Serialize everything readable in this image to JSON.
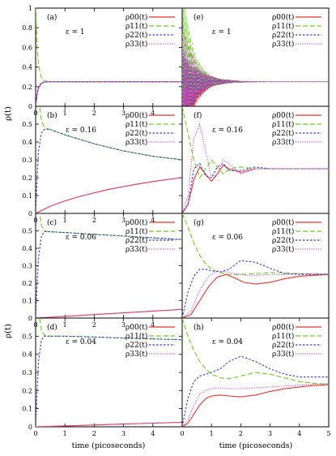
{
  "figure": {
    "ylabel": "ρ(t)",
    "xlabel": "time (picoseconds)"
  },
  "legend_labels": [
    "ρ00(t)",
    "ρ11(t)",
    "ρ22(t)",
    "ρ33(t)"
  ],
  "series_styles": [
    {
      "color": "#e8332f",
      "dash": ""
    },
    {
      "color": "#6bcd1c",
      "dash": "6,3"
    },
    {
      "color": "#3a3ad6",
      "dash": "2.5,2"
    },
    {
      "color": "#d14fd6",
      "dash": "1.2,1.6"
    }
  ],
  "chart_data": [
    {
      "type": "line",
      "panel_label": "(a)",
      "epsilon_label": "ε = 1",
      "xlim": [
        0,
        5
      ],
      "ylim": [
        0,
        1
      ],
      "x_ticks": [
        "0",
        "1",
        "2",
        "3",
        "4"
      ],
      "y_ticks": [
        "0",
        "0.2",
        "0.4",
        "0.6",
        "0.8",
        "1"
      ],
      "series": [
        {
          "name": "ρ00(t)",
          "x": [
            0,
            0.05,
            0.1,
            0.2,
            0.3,
            0.5,
            1,
            5
          ],
          "y": [
            0,
            0.12,
            0.19,
            0.235,
            0.248,
            0.25,
            0.25,
            0.25
          ]
        },
        {
          "name": "ρ11(t)",
          "x": [
            0,
            0.05,
            0.1,
            0.2,
            0.3,
            0.5,
            1,
            5
          ],
          "y": [
            1,
            0.6,
            0.42,
            0.29,
            0.26,
            0.25,
            0.25,
            0.25
          ]
        },
        {
          "name": "ρ22(t)",
          "x": [
            0,
            0.05,
            0.1,
            0.2,
            0.3,
            0.5,
            1,
            5
          ],
          "y": [
            0,
            0.13,
            0.2,
            0.24,
            0.248,
            0.25,
            0.25,
            0.25
          ]
        },
        {
          "name": "ρ33(t)",
          "x": [
            0,
            0.05,
            0.1,
            0.2,
            0.3,
            0.5,
            1,
            5
          ],
          "y": [
            0,
            0.11,
            0.18,
            0.23,
            0.246,
            0.25,
            0.25,
            0.25
          ]
        }
      ]
    },
    {
      "type": "line",
      "panel_label": "(e)",
      "epsilon_label": "ε = 1",
      "xlim": [
        0,
        5
      ],
      "ylim": [
        0,
        1
      ],
      "x_ticks": [],
      "y_ticks": [],
      "series": [
        {
          "name": "ρ00(t)",
          "x": [
            0,
            0.5,
            1,
            5
          ],
          "y": [
            0,
            0.2,
            0.25,
            0.25
          ],
          "oscillation": {
            "amp": 0.55,
            "period": 0.05,
            "decay": 0.45
          }
        },
        {
          "name": "ρ11(t)",
          "x": [
            0,
            0.5,
            1,
            5
          ],
          "y": [
            0.6,
            0.3,
            0.25,
            0.25
          ],
          "oscillation": {
            "amp": 0.55,
            "period": 0.05,
            "decay": 0.45
          }
        },
        {
          "name": "ρ22(t)",
          "x": [
            0,
            0.5,
            1,
            5
          ],
          "y": [
            0.1,
            0.22,
            0.25,
            0.25
          ],
          "oscillation": {
            "amp": 0.5,
            "period": 0.05,
            "decay": 0.45
          }
        },
        {
          "name": "ρ33(t)",
          "x": [
            0,
            0.5,
            1,
            5
          ],
          "y": [
            0.3,
            0.26,
            0.25,
            0.25
          ],
          "oscillation": {
            "amp": 0.55,
            "period": 0.05,
            "decay": 0.45
          }
        }
      ]
    },
    {
      "type": "line",
      "panel_label": "(b)",
      "epsilon_label": "ε = 0.16",
      "xlim": [
        0,
        5
      ],
      "ylim": [
        0,
        0.6
      ],
      "x_ticks": [
        "0",
        "1",
        "2",
        "3",
        "4"
      ],
      "y_ticks": [
        "0",
        "0.1",
        "0.2",
        "0.3",
        "0.4",
        "0.5"
      ],
      "series": [
        {
          "name": "ρ00(t)",
          "x": [
            0,
            0.5,
            1,
            1.5,
            2,
            2.5,
            3,
            3.5,
            4,
            4.5,
            5
          ],
          "y": [
            0,
            0.04,
            0.07,
            0.095,
            0.115,
            0.135,
            0.15,
            0.165,
            0.178,
            0.19,
            0.2
          ]
        },
        {
          "name": "ρ11(t)",
          "x": [
            0,
            0.1,
            0.2,
            0.3,
            0.5,
            1,
            2,
            3,
            4,
            5
          ],
          "y": [
            1,
            0.65,
            0.52,
            0.48,
            0.47,
            0.44,
            0.39,
            0.35,
            0.32,
            0.3
          ]
        },
        {
          "name": "ρ22(t)",
          "x": [
            0,
            0.05,
            0.1,
            0.2,
            0.3,
            0.5,
            1,
            2,
            3,
            4,
            5
          ],
          "y": [
            0,
            0.2,
            0.35,
            0.45,
            0.47,
            0.47,
            0.44,
            0.39,
            0.35,
            0.32,
            0.3
          ]
        },
        {
          "name": "ρ33(t)",
          "x": [
            0,
            0.5,
            1,
            1.5,
            2,
            2.5,
            3,
            3.5,
            4,
            4.5,
            5
          ],
          "y": [
            0,
            0.04,
            0.07,
            0.095,
            0.115,
            0.135,
            0.15,
            0.165,
            0.178,
            0.19,
            0.2
          ]
        }
      ]
    },
    {
      "type": "line",
      "panel_label": "(f)",
      "epsilon_label": "ε = 0.16",
      "xlim": [
        0,
        5
      ],
      "ylim": [
        0,
        0.6
      ],
      "x_ticks": [],
      "y_ticks": [],
      "series": [
        {
          "name": "ρ00(t)",
          "x": [
            0,
            0.2,
            0.4,
            0.6,
            0.8,
            1,
            1.2,
            1.4,
            1.6,
            2,
            2.5,
            3,
            4,
            5
          ],
          "y": [
            0,
            0.05,
            0.19,
            0.26,
            0.22,
            0.18,
            0.22,
            0.27,
            0.25,
            0.23,
            0.25,
            0.25,
            0.25,
            0.25
          ]
        },
        {
          "name": "ρ11(t)",
          "x": [
            0,
            0.2,
            0.4,
            0.6,
            0.8,
            1,
            1.2,
            1.4,
            1.6,
            2,
            2.5,
            3,
            4,
            5
          ],
          "y": [
            0.6,
            0.45,
            0.3,
            0.2,
            0.25,
            0.3,
            0.26,
            0.22,
            0.25,
            0.26,
            0.25,
            0.25,
            0.25,
            0.25
          ]
        },
        {
          "name": "ρ22(t)",
          "x": [
            0,
            0.2,
            0.4,
            0.6,
            0.8,
            1,
            1.2,
            1.4,
            1.6,
            2,
            2.5,
            3,
            4,
            5
          ],
          "y": [
            0,
            0.05,
            0.25,
            0.28,
            0.21,
            0.2,
            0.26,
            0.28,
            0.24,
            0.24,
            0.26,
            0.25,
            0.25,
            0.25
          ]
        },
        {
          "name": "ρ33(t)",
          "x": [
            0,
            0.2,
            0.4,
            0.6,
            0.8,
            1,
            1.2,
            1.4,
            1.6,
            2,
            2.5,
            3,
            4,
            5
          ],
          "y": [
            0,
            0.1,
            0.42,
            0.5,
            0.35,
            0.2,
            0.22,
            0.3,
            0.28,
            0.22,
            0.25,
            0.25,
            0.25,
            0.25
          ]
        }
      ]
    },
    {
      "type": "line",
      "panel_label": "(c)",
      "epsilon_label": "ε = 0.06",
      "xlim": [
        0,
        5
      ],
      "ylim": [
        0,
        0.6
      ],
      "x_ticks": [
        "0",
        "1",
        "2",
        "3",
        "4"
      ],
      "y_ticks": [
        "0",
        "0.1",
        "0.2",
        "0.3",
        "0.4",
        "0.5"
      ],
      "series": [
        {
          "name": "ρ00(t)",
          "x": [
            0,
            1,
            2,
            3,
            4,
            5
          ],
          "y": [
            0,
            0.01,
            0.02,
            0.03,
            0.04,
            0.05
          ]
        },
        {
          "name": "ρ11(t)",
          "x": [
            0,
            0.1,
            0.2,
            0.3,
            0.5,
            1,
            2,
            3,
            4,
            5
          ],
          "y": [
            1,
            0.65,
            0.53,
            0.5,
            0.495,
            0.49,
            0.48,
            0.47,
            0.46,
            0.45
          ]
        },
        {
          "name": "ρ22(t)",
          "x": [
            0,
            0.05,
            0.1,
            0.2,
            0.3,
            0.5,
            1,
            2,
            3,
            4,
            5
          ],
          "y": [
            0,
            0.2,
            0.35,
            0.47,
            0.495,
            0.495,
            0.49,
            0.48,
            0.47,
            0.46,
            0.45
          ]
        },
        {
          "name": "ρ33(t)",
          "x": [
            0,
            1,
            2,
            3,
            4,
            5
          ],
          "y": [
            0,
            0.01,
            0.02,
            0.03,
            0.04,
            0.05
          ]
        }
      ]
    },
    {
      "type": "line",
      "panel_label": "(g)",
      "epsilon_label": "ε = 0.06",
      "xlim": [
        0,
        5
      ],
      "ylim": [
        0,
        0.6
      ],
      "x_ticks": [],
      "y_ticks": [],
      "series": [
        {
          "name": "ρ00(t)",
          "x": [
            0,
            0.3,
            0.6,
            0.9,
            1.2,
            1.5,
            1.8,
            2.1,
            2.5,
            3,
            3.5,
            4,
            4.5,
            5
          ],
          "y": [
            0,
            0.02,
            0.1,
            0.18,
            0.235,
            0.25,
            0.23,
            0.205,
            0.195,
            0.205,
            0.225,
            0.24,
            0.245,
            0.25
          ]
        },
        {
          "name": "ρ11(t)",
          "x": [
            0,
            0.2,
            0.4,
            0.6,
            0.8,
            1,
            1.3,
            1.6,
            2,
            2.5,
            3,
            3.5,
            4,
            5
          ],
          "y": [
            0.6,
            0.52,
            0.43,
            0.36,
            0.31,
            0.28,
            0.26,
            0.25,
            0.25,
            0.255,
            0.26,
            0.26,
            0.255,
            0.25
          ]
        },
        {
          "name": "ρ22(t)",
          "x": [
            0,
            0.2,
            0.4,
            0.6,
            0.8,
            1,
            1.3,
            1.6,
            2,
            2.5,
            3,
            3.5,
            4,
            5
          ],
          "y": [
            0,
            0.15,
            0.24,
            0.28,
            0.28,
            0.27,
            0.265,
            0.28,
            0.33,
            0.32,
            0.285,
            0.255,
            0.25,
            0.25
          ]
        },
        {
          "name": "ρ33(t)",
          "x": [
            0,
            0.3,
            0.6,
            0.9,
            1.2,
            1.5,
            1.8,
            2.2,
            2.6,
            3,
            3.5,
            4,
            4.5,
            5
          ],
          "y": [
            0,
            0.04,
            0.16,
            0.24,
            0.27,
            0.265,
            0.255,
            0.245,
            0.245,
            0.25,
            0.25,
            0.255,
            0.255,
            0.255
          ]
        }
      ]
    },
    {
      "type": "line",
      "panel_label": "(d)",
      "epsilon_label": "ε = 0.04",
      "xlim": [
        0,
        5
      ],
      "ylim": [
        0,
        0.6
      ],
      "x_ticks": [
        "0",
        "1",
        "2",
        "3",
        "4"
      ],
      "y_ticks": [
        "0",
        "0.1",
        "0.2",
        "0.3",
        "0.4",
        "0.5"
      ],
      "series": [
        {
          "name": "ρ00(t)",
          "x": [
            0,
            1,
            2,
            3,
            4,
            5
          ],
          "y": [
            0,
            0.005,
            0.01,
            0.015,
            0.02,
            0.025
          ]
        },
        {
          "name": "ρ11(t)",
          "x": [
            0,
            0.1,
            0.2,
            0.3,
            0.5,
            1,
            2,
            3,
            4,
            5
          ],
          "y": [
            1,
            0.65,
            0.53,
            0.505,
            0.5,
            0.5,
            0.495,
            0.49,
            0.485,
            0.48
          ]
        },
        {
          "name": "ρ22(t)",
          "x": [
            0,
            0.05,
            0.1,
            0.2,
            0.3,
            0.5,
            1,
            2,
            3,
            4,
            5
          ],
          "y": [
            0,
            0.2,
            0.36,
            0.48,
            0.5,
            0.5,
            0.5,
            0.495,
            0.49,
            0.485,
            0.48
          ]
        },
        {
          "name": "ρ33(t)",
          "x": [
            0,
            1,
            2,
            3,
            4,
            5
          ],
          "y": [
            0,
            0.005,
            0.01,
            0.015,
            0.02,
            0.025
          ]
        }
      ]
    },
    {
      "type": "line",
      "panel_label": "(h)",
      "epsilon_label": "ε = 0.04",
      "xlim": [
        0,
        5
      ],
      "ylim": [
        0,
        0.6
      ],
      "x_ticks": [
        "0",
        "1",
        "2",
        "3",
        "4",
        "5"
      ],
      "y_ticks": [],
      "series": [
        {
          "name": "ρ00(t)",
          "x": [
            0,
            0.2,
            0.4,
            0.6,
            0.8,
            1,
            1.3,
            1.6,
            2,
            2.5,
            3,
            3.5,
            4,
            4.5,
            5
          ],
          "y": [
            0,
            0.02,
            0.07,
            0.12,
            0.155,
            0.17,
            0.175,
            0.17,
            0.165,
            0.175,
            0.195,
            0.21,
            0.22,
            0.228,
            0.232
          ]
        },
        {
          "name": "ρ11(t)",
          "x": [
            0,
            0.2,
            0.4,
            0.6,
            0.8,
            1,
            1.3,
            1.6,
            2,
            2.5,
            3,
            3.5,
            4,
            4.5,
            5
          ],
          "y": [
            0.6,
            0.5,
            0.42,
            0.36,
            0.32,
            0.29,
            0.27,
            0.265,
            0.28,
            0.3,
            0.29,
            0.27,
            0.25,
            0.24,
            0.235
          ]
        },
        {
          "name": "ρ22(t)",
          "x": [
            0,
            0.2,
            0.4,
            0.6,
            0.8,
            1,
            1.3,
            1.6,
            2,
            2.5,
            3,
            3.5,
            4,
            4.5,
            5
          ],
          "y": [
            0,
            0.16,
            0.25,
            0.28,
            0.29,
            0.3,
            0.32,
            0.36,
            0.39,
            0.36,
            0.32,
            0.29,
            0.275,
            0.275,
            0.275
          ]
        },
        {
          "name": "ρ33(t)",
          "x": [
            0,
            0.2,
            0.4,
            0.6,
            0.8,
            1,
            1.3,
            1.6,
            2,
            2.5,
            3,
            3.5,
            4,
            4.5,
            5
          ],
          "y": [
            0,
            0.04,
            0.12,
            0.18,
            0.2,
            0.21,
            0.215,
            0.21,
            0.21,
            0.215,
            0.22,
            0.225,
            0.23,
            0.235,
            0.24
          ]
        }
      ]
    }
  ]
}
